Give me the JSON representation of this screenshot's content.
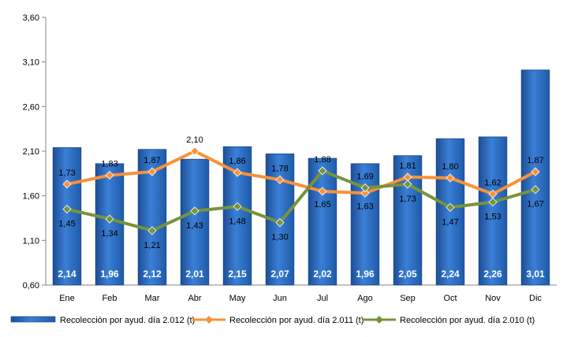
{
  "chart_data": {
    "type": "bar",
    "categories": [
      "Ene",
      "Feb",
      "Mar",
      "Abr",
      "May",
      "Jun",
      "Jul",
      "Ago",
      "Sep",
      "Oct",
      "Nov",
      "Dic"
    ],
    "series": [
      {
        "name": "Recolección por ayud. día 2.012 (t)",
        "type": "bar",
        "color": "#2f6fc4",
        "values": [
          2.14,
          1.96,
          2.12,
          2.01,
          2.15,
          2.07,
          2.02,
          1.96,
          2.05,
          2.24,
          2.26,
          3.01
        ],
        "labels": [
          "2,14",
          "1,96",
          "2,12",
          "2,01",
          "2,15",
          "2,07",
          "2,02",
          "1,96",
          "2,05",
          "2,24",
          "2,26",
          "3,01"
        ]
      },
      {
        "name": "Recolección por ayud. día 2.011 (t)",
        "type": "line",
        "color": "#f7923a",
        "marker": "diamond",
        "values": [
          1.73,
          1.83,
          1.87,
          2.1,
          1.86,
          1.78,
          1.65,
          1.63,
          1.81,
          1.8,
          1.62,
          1.87
        ],
        "labels": [
          "1,73",
          "1,83",
          "1,87",
          "2,10",
          "1,86",
          "1,78",
          "1,65",
          "1,63",
          "1,81",
          "1,80",
          "1,62",
          "1,87"
        ]
      },
      {
        "name": "Recolección por ayud. día 2.010 (t)",
        "type": "line",
        "color": "#77933c",
        "marker": "diamond",
        "values": [
          1.45,
          1.34,
          1.21,
          1.43,
          1.48,
          1.3,
          1.88,
          1.69,
          1.73,
          1.47,
          1.53,
          1.67
        ],
        "labels": [
          "1,45",
          "1,34",
          "1,21",
          "1,43",
          "1,48",
          "1,30",
          "1,88",
          "1,69",
          "1,73",
          "1,47",
          "1,53",
          "1,67"
        ]
      }
    ],
    "title": "",
    "xlabel": "",
    "ylabel": "",
    "ylim": [
      0.6,
      3.6
    ],
    "yticks": [
      0.6,
      1.1,
      1.6,
      2.1,
      2.6,
      3.1,
      3.6
    ],
    "ytick_labels": [
      "0,60",
      "1,10",
      "1,60",
      "2,10",
      "2,60",
      "3,10",
      "3,60"
    ],
    "grid": false,
    "legend_position": "bottom"
  }
}
